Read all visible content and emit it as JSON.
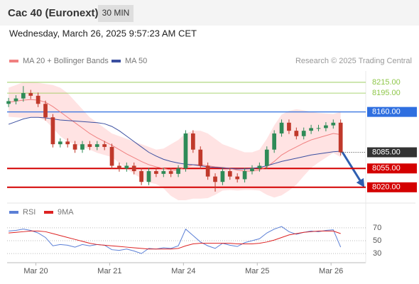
{
  "header": {
    "title": "Cac 40 (Euronext)",
    "interval": "30 MIN",
    "date": "Wednesday, March 26, 2025 9:57:23 AM CET",
    "source": "Research © 2025 Trading Central"
  },
  "chart_data": [
    {
      "type": "candlestick",
      "legend": [
        "MA 20 + Bollinger Bands",
        "MA 50"
      ],
      "up_color": "#2e8b57",
      "down_color": "#c0392b",
      "xlim": [
        -0.2,
        48.4
      ],
      "ylim": [
        7996,
        8236
      ],
      "open": [
        8175,
        8180,
        8185,
        8195,
        8190,
        8175,
        8150,
        8100,
        8105,
        8100,
        8090,
        8100,
        8095,
        8100,
        8095,
        8060,
        8055,
        8060,
        8050,
        8030,
        8050,
        8045,
        8050,
        8045,
        8055,
        8120,
        8090,
        8060,
        8040,
        8030,
        8050,
        8040,
        8035,
        8050,
        8055,
        8060,
        8090,
        8120,
        8140,
        8125,
        8115,
        8125,
        8130,
        8130,
        8135,
        8140
      ],
      "high": [
        8186,
        8191,
        8208,
        8201,
        8196,
        8181,
        8156,
        8111,
        8111,
        8106,
        8106,
        8106,
        8106,
        8106,
        8101,
        8066,
        8066,
        8066,
        8056,
        8056,
        8056,
        8056,
        8056,
        8061,
        8126,
        8126,
        8096,
        8066,
        8046,
        8056,
        8056,
        8046,
        8056,
        8061,
        8066,
        8096,
        8126,
        8146,
        8146,
        8131,
        8131,
        8136,
        8136,
        8141,
        8146,
        8146
      ],
      "low": [
        8169,
        8174,
        8179,
        8184,
        8169,
        8144,
        8094,
        8094,
        8094,
        8084,
        8084,
        8089,
        8089,
        8089,
        8054,
        8049,
        8049,
        8044,
        8024,
        8024,
        8039,
        8039,
        8039,
        8039,
        8049,
        8084,
        8054,
        8034,
        8012,
        8024,
        8034,
        8029,
        8029,
        8044,
        8049,
        8054,
        8084,
        8114,
        8119,
        8109,
        8109,
        8119,
        8124,
        8124,
        8129,
        8079
      ],
      "close": [
        8180,
        8185,
        8195,
        8190,
        8175,
        8150,
        8100,
        8105,
        8100,
        8090,
        8100,
        8095,
        8100,
        8095,
        8060,
        8055,
        8060,
        8050,
        8030,
        8050,
        8045,
        8050,
        8045,
        8055,
        8120,
        8090,
        8060,
        8040,
        8030,
        8050,
        8040,
        8035,
        8050,
        8055,
        8060,
        8090,
        8120,
        8140,
        8125,
        8115,
        8125,
        8130,
        8130,
        8135,
        8140,
        8085
      ],
      "series": [
        {
          "name": "MA 20",
          "color": "#f08080",
          "values": [
            8178,
            8180,
            8182,
            8183,
            8182,
            8178,
            8170,
            8160,
            8150,
            8140,
            8130,
            8120,
            8112,
            8105,
            8098,
            8090,
            8082,
            8075,
            8068,
            8062,
            8058,
            8055,
            8052,
            8052,
            8058,
            8062,
            8062,
            8060,
            8058,
            8057,
            8055,
            8052,
            8050,
            8050,
            8052,
            8058,
            8068,
            8080,
            8088,
            8095,
            8102,
            8108,
            8112,
            8116,
            8120,
            8118
          ]
        },
        {
          "name": "MA 50",
          "color": "#3b4fa0",
          "values": [
            8137,
            8142,
            8147,
            8150,
            8150,
            8149,
            8147,
            8145,
            8144,
            8143,
            8142,
            8141,
            8140,
            8138,
            8133,
            8125,
            8115,
            8105,
            8095,
            8085,
            8078,
            8072,
            8068,
            8065,
            8063,
            8062,
            8060,
            8058,
            8057,
            8056,
            8055,
            8054,
            8054,
            8055,
            8057,
            8060,
            8064,
            8068,
            8071,
            8074,
            8077,
            8080,
            8082,
            8084,
            8086,
            8087
          ]
        }
      ],
      "bollinger": {
        "color": "#ffb0b0",
        "upper": [
          8205,
          8210,
          8215,
          8215,
          8214,
          8212,
          8210,
          8205,
          8195,
          8180,
          8165,
          8150,
          8140,
          8130,
          8120,
          8115,
          8110,
          8105,
          8100,
          8095,
          8090,
          8092,
          8100,
          8108,
          8120,
          8125,
          8125,
          8120,
          8110,
          8100,
          8095,
          8090,
          8085,
          8085,
          8090,
          8110,
          8135,
          8155,
          8162,
          8165,
          8163,
          8160,
          8158,
          8157,
          8156,
          8160
        ],
        "lower": [
          8151,
          8150,
          8149,
          8151,
          8150,
          8144,
          8130,
          8115,
          8105,
          8100,
          8095,
          8090,
          8084,
          8080,
          8076,
          8065,
          8054,
          8045,
          8036,
          8029,
          8026,
          8018,
          8004,
          7996,
          7996,
          7999,
          7999,
          8000,
          8006,
          8014,
          8015,
          8014,
          8015,
          8015,
          8014,
          8006,
          8001,
          8005,
          8014,
          8025,
          8041,
          8056,
          8066,
          8075,
          8084,
          8076
        ]
      },
      "levels": [
        {
          "value": 8215,
          "label": "8215.00",
          "color": "#8fc74a",
          "style": "text"
        },
        {
          "value": 8195,
          "label": "8195.00",
          "color": "#8fc74a",
          "style": "text"
        },
        {
          "value": 8160,
          "label": "8160.00",
          "color": "#2f6fe0",
          "style": "box"
        },
        {
          "value": 8055,
          "label": "8055.00",
          "color": "#d40000",
          "style": "box"
        },
        {
          "value": 8020,
          "label": "8020.00",
          "color": "#d40000",
          "style": "box"
        }
      ],
      "last": {
        "value": 8085,
        "label": "8085.00",
        "color": "#333333"
      }
    },
    {
      "type": "line",
      "legend_note": null,
      "xlim": [
        -0.2,
        48.4
      ],
      "xticks": [
        {
          "value": 3.7,
          "label": "Mar 20"
        },
        {
          "value": 13.7,
          "label": "Mar 21"
        },
        {
          "value": 23.7,
          "label": "Mar 24"
        },
        {
          "value": 33.7,
          "label": "Mar 25"
        },
        {
          "value": 43.7,
          "label": "Mar 26"
        }
      ],
      "ylim": [
        18,
        82
      ],
      "yticks": [
        70,
        50,
        30
      ],
      "grid": true,
      "series": [
        {
          "name": "RSI",
          "color": "#5b7fd6",
          "values": [
            65,
            66,
            68,
            66,
            62,
            55,
            42,
            44,
            43,
            40,
            44,
            42,
            44,
            43,
            36,
            35,
            37,
            34,
            30,
            38,
            37,
            39,
            38,
            42,
            68,
            58,
            48,
            42,
            38,
            46,
            43,
            41,
            47,
            50,
            53,
            62,
            68,
            72,
            64,
            60,
            63,
            65,
            64,
            66,
            67,
            40
          ]
        },
        {
          "name": "9MA",
          "color": "#dd2222",
          "values": [
            62,
            63,
            64,
            65,
            65,
            64,
            61,
            58,
            55,
            52,
            49,
            46,
            44,
            43,
            42,
            41,
            40,
            39,
            38,
            37,
            37,
            37,
            37,
            38,
            42,
            45,
            46,
            46,
            46,
            46,
            46,
            45,
            45,
            45,
            46,
            48,
            51,
            55,
            59,
            61,
            63,
            64,
            65,
            65,
            65,
            61
          ]
        }
      ]
    }
  ]
}
